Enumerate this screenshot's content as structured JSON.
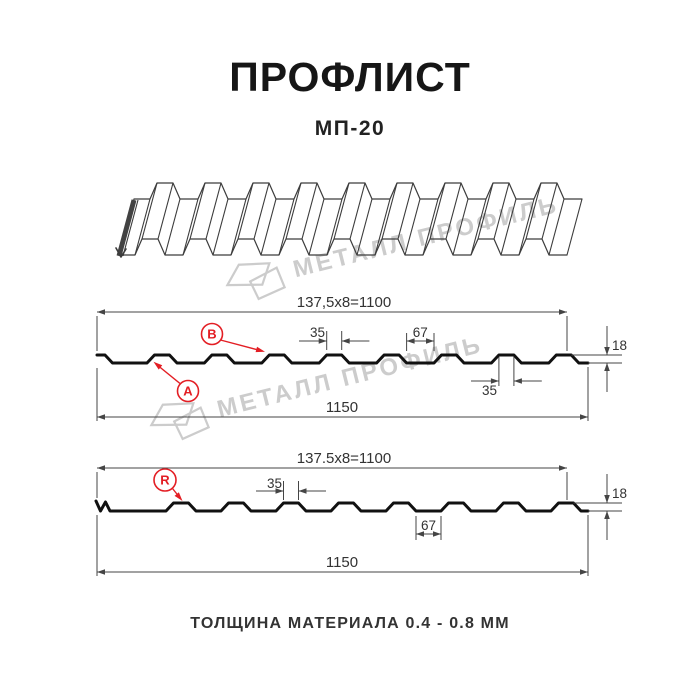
{
  "header": {
    "title": "ПРОФЛИСТ",
    "subtitle": "МП-20"
  },
  "watermark": {
    "text": "МЕТАЛЛ ПРОФИЛЬ"
  },
  "footer": {
    "thickness_note": "ТОЛЩИНА МАТЕРИАЛА 0.4 - 0.8 ММ"
  },
  "colors": {
    "accent_red": "#e31e24",
    "drawing_line": "#3c3c3c",
    "profile_line": "#111111",
    "dimension_line": "#454545",
    "watermark_gray": "#cccccc"
  },
  "profile1": {
    "dims": {
      "module": "137,5x8=1100",
      "total": "1150",
      "crest_width": "35",
      "valley_width": "67",
      "height": "18",
      "crest_width_bottom": "35"
    },
    "labels": {
      "a": "A",
      "b": "B"
    }
  },
  "profile2": {
    "dims": {
      "module": "137.5x8=1100",
      "total": "1150",
      "crest_width": "35",
      "valley_width": "67",
      "height": "18"
    },
    "labels": {
      "r": "R"
    }
  }
}
